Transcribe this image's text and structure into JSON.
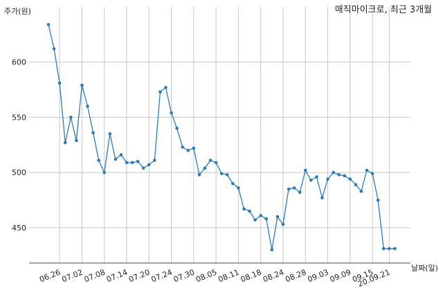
{
  "chart_data": {
    "type": "line",
    "title": "매직마이크로, 최근 3개월",
    "ylabel": "주가(원)",
    "xlabel": "날짜(일)",
    "ylim": [
      418,
      650
    ],
    "yticks": [
      450,
      500,
      550,
      600
    ],
    "grid": true,
    "line_color": "#2b7bb9",
    "x_ticks": [
      {
        "label": "06.26",
        "index": 2
      },
      {
        "label": "07.02",
        "index": 6
      },
      {
        "label": "07.08",
        "index": 10
      },
      {
        "label": "07.14",
        "index": 14
      },
      {
        "label": "07.20",
        "index": 18
      },
      {
        "label": "07.24",
        "index": 22
      },
      {
        "label": "07.30",
        "index": 26
      },
      {
        "label": "08.05",
        "index": 30
      },
      {
        "label": "08.11",
        "index": 34
      },
      {
        "label": "08.18",
        "index": 38
      },
      {
        "label": "08.24",
        "index": 42
      },
      {
        "label": "08.28",
        "index": 46
      },
      {
        "label": "09.03",
        "index": 50
      },
      {
        "label": "09.09",
        "index": 54
      },
      {
        "label": "09.15",
        "index": 58
      },
      {
        "label": "20.09.21",
        "index": 61
      }
    ],
    "values": [
      634,
      612,
      581,
      527,
      550,
      529,
      579,
      560,
      536,
      511,
      500,
      535,
      512,
      516,
      509,
      509,
      510,
      504,
      507,
      511,
      573,
      577,
      554,
      540,
      523,
      520,
      522,
      498,
      504,
      511,
      509,
      499,
      498,
      490,
      486,
      467,
      465,
      457,
      461,
      458,
      430,
      460,
      453,
      485,
      486,
      482,
      502,
      493,
      496,
      477,
      494,
      500,
      498,
      497,
      494,
      489,
      483,
      502,
      499,
      475,
      431,
      431,
      431
    ]
  }
}
